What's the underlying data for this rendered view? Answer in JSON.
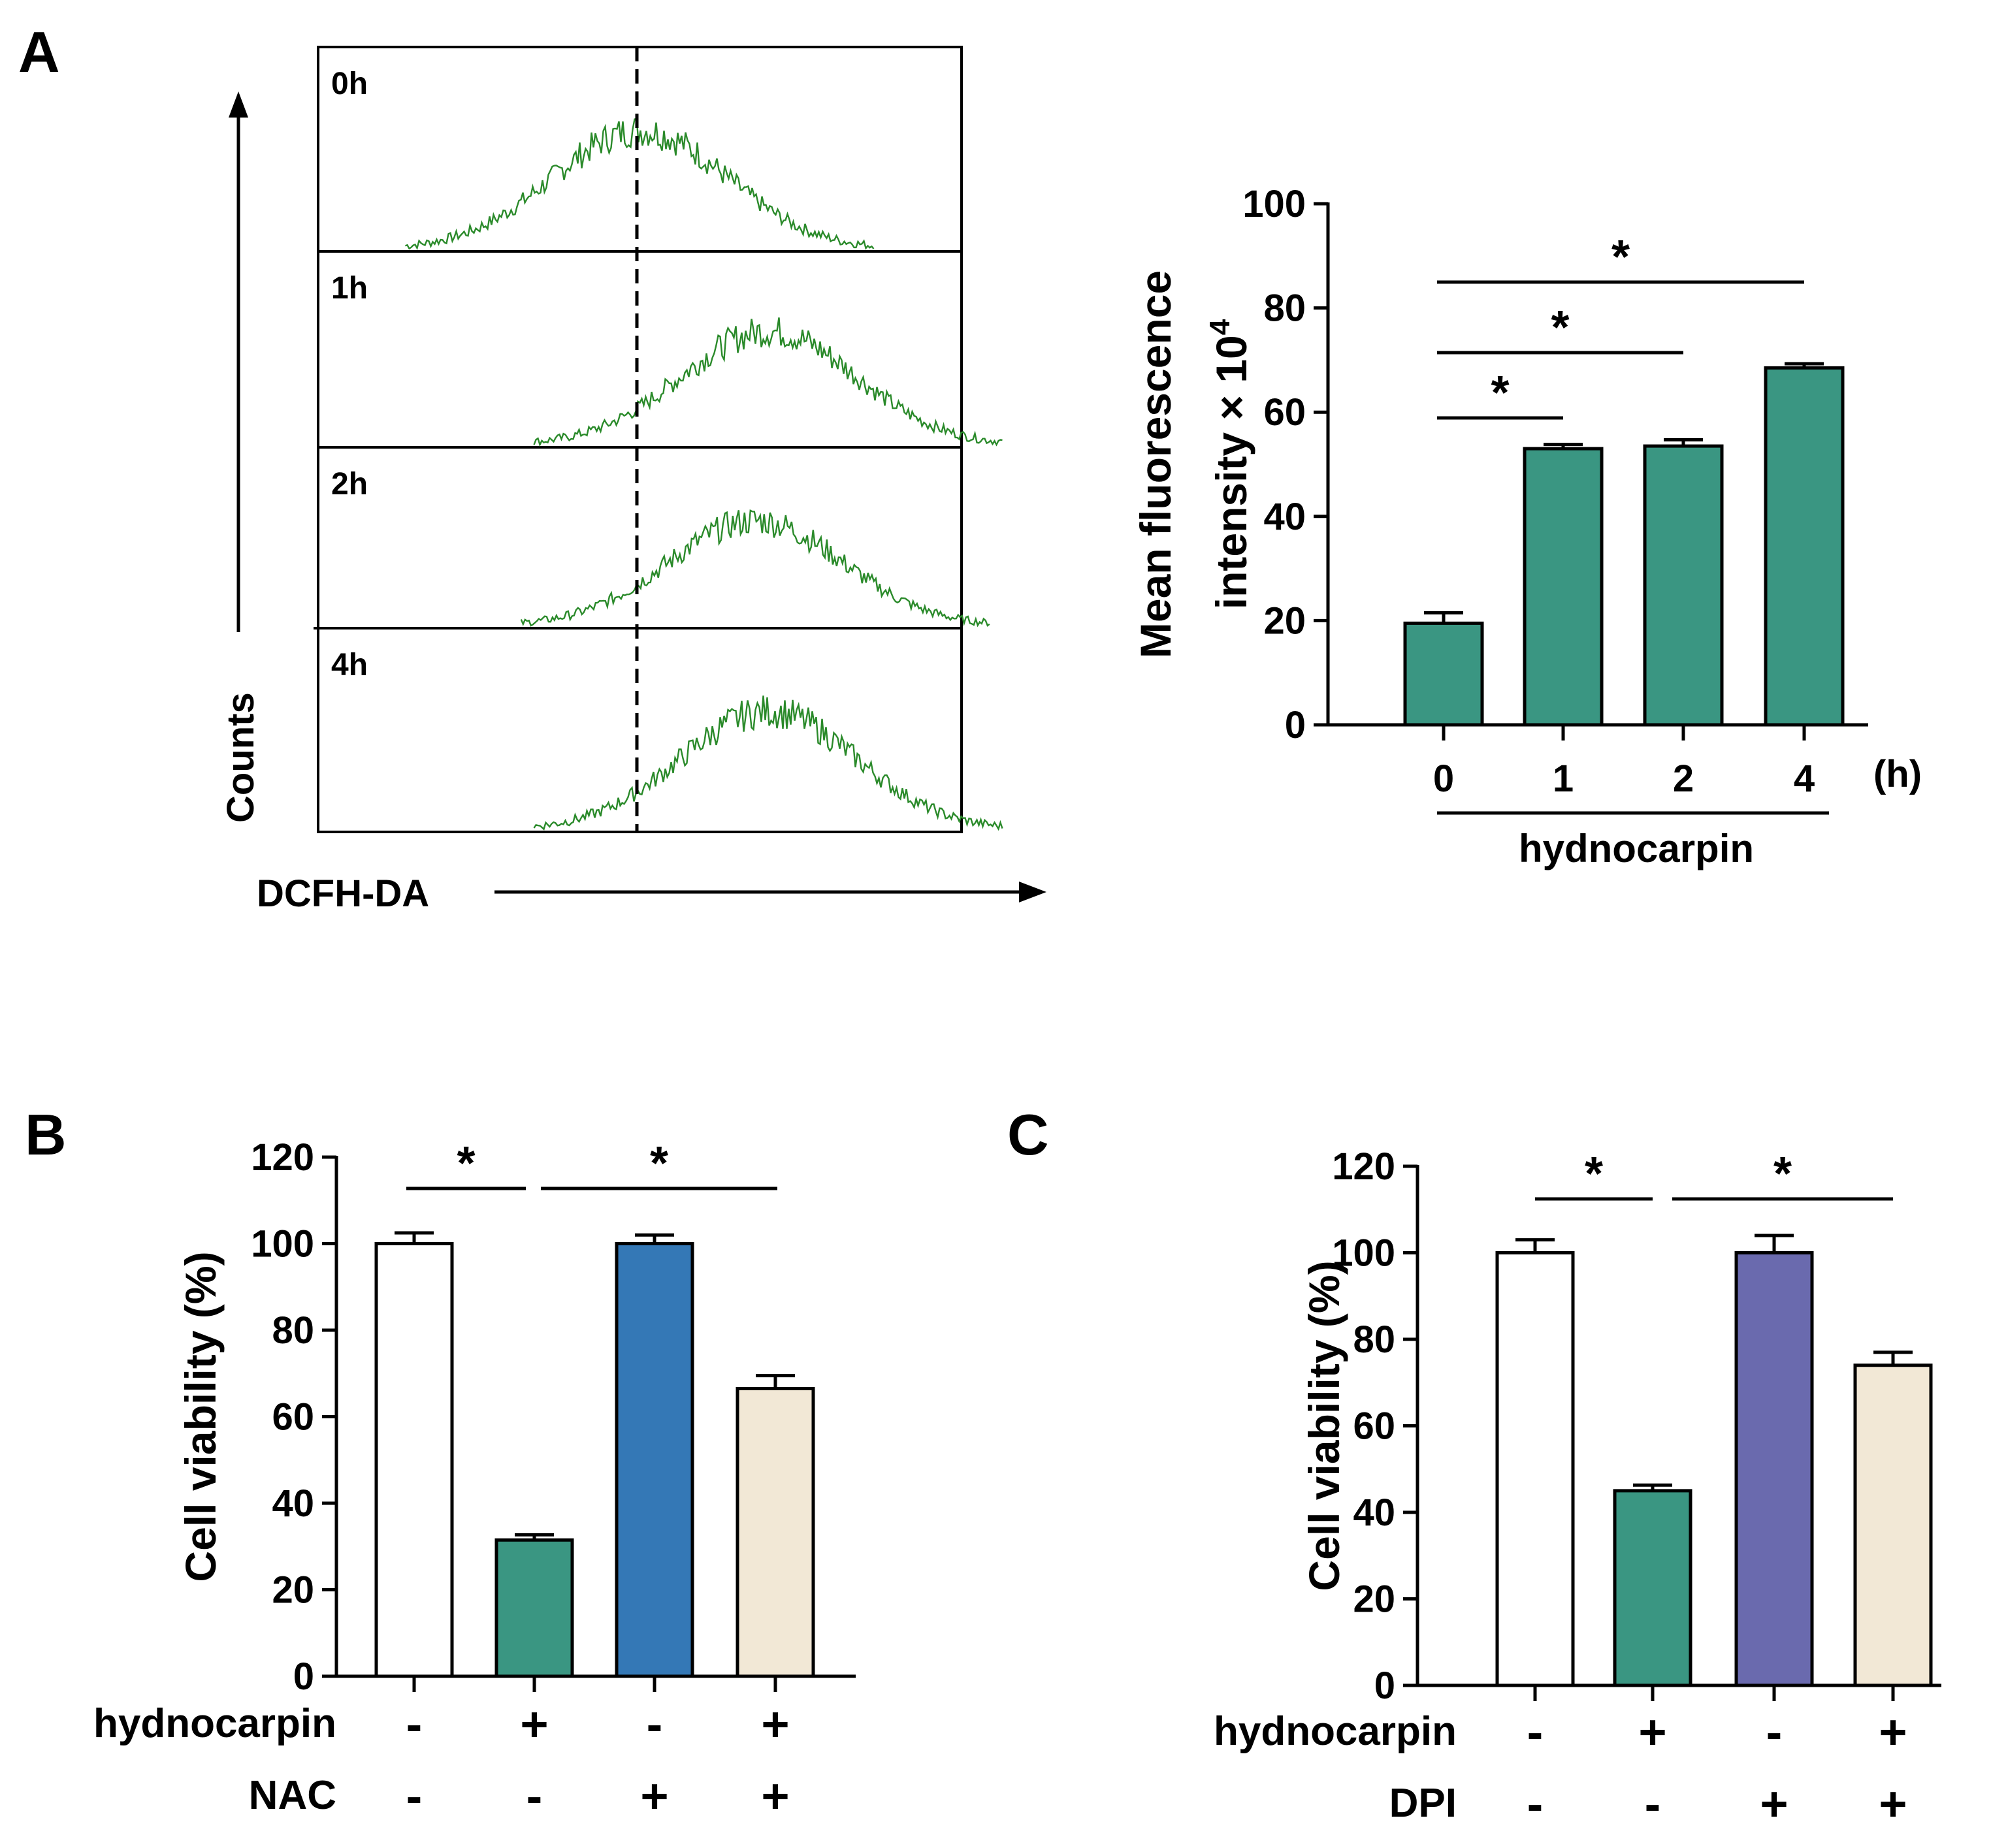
{
  "chart_data": [
    {
      "panel": "A",
      "type": "histogram",
      "xlabel": "DCFH-DA",
      "ylabel": "Counts",
      "histograms": [
        {
          "label": "0h",
          "mode": 0.5
        },
        {
          "label": "1h",
          "mode": 0.7
        },
        {
          "label": "2h",
          "mode": 0.68
        },
        {
          "label": "4h",
          "mode": 0.7
        }
      ]
    },
    {
      "panel": "A",
      "type": "bar",
      "ylabel_line1": "Mean fluorescence",
      "ylabel_line2": "intensity × 10",
      "ylabel_sup": "4",
      "categories": [
        "0",
        "1",
        "2",
        "4"
      ],
      "x_unit": "(h)",
      "group_label": "hydnocarpin",
      "values": [
        19.5,
        53,
        53.5,
        68.5
      ],
      "errors": [
        2,
        0.8,
        1.2,
        0.8
      ],
      "ylim": [
        0,
        100
      ],
      "yticks": [
        "0",
        "20",
        "40",
        "60",
        "80",
        "100"
      ],
      "colors": [
        "#3a9682",
        "#3a9682",
        "#3a9682",
        "#3a9682"
      ],
      "significance": [
        {
          "from": 0,
          "to": 1,
          "label": "*"
        },
        {
          "from": 0,
          "to": 2,
          "label": "*"
        },
        {
          "from": 0,
          "to": 3,
          "label": "*"
        }
      ]
    },
    {
      "panel": "B",
      "type": "bar",
      "ylabel": "Cell viability (%)",
      "values": [
        100,
        31.5,
        100,
        66.5
      ],
      "errors": [
        2.5,
        1.2,
        2,
        3
      ],
      "ylim": [
        0,
        120
      ],
      "yticks": [
        "0",
        "20",
        "40",
        "60",
        "80",
        "100",
        "120"
      ],
      "colors": [
        "#ffffff",
        "#3a9682",
        "#3478b6",
        "#f2e8d6"
      ],
      "conditions": [
        {
          "name": "hydnocarpin",
          "marks": [
            "-",
            "+",
            "-",
            "+"
          ]
        },
        {
          "name": "NAC",
          "marks": [
            "-",
            "-",
            "+",
            "+"
          ]
        }
      ],
      "significance": [
        {
          "from": 0,
          "to": 1,
          "label": "*"
        },
        {
          "from": 1,
          "to": 3,
          "label": "*"
        }
      ]
    },
    {
      "panel": "C",
      "type": "bar",
      "ylabel": "Cell viability (%)",
      "values": [
        100,
        45,
        100,
        74
      ],
      "errors": [
        3,
        1.3,
        4,
        3
      ],
      "ylim": [
        0,
        120
      ],
      "yticks": [
        "0",
        "20",
        "40",
        "60",
        "80",
        "100",
        "120"
      ],
      "colors": [
        "#ffffff",
        "#3a9682",
        "#6a6aae",
        "#f2e8d6"
      ],
      "conditions": [
        {
          "name": "hydnocarpin",
          "marks": [
            "-",
            "+",
            "-",
            "+"
          ]
        },
        {
          "name": "DPI",
          "marks": [
            "-",
            "-",
            "+",
            "+"
          ]
        }
      ],
      "significance": [
        {
          "from": 0,
          "to": 1,
          "label": "*"
        },
        {
          "from": 1,
          "to": 3,
          "label": "*"
        }
      ]
    }
  ],
  "panels": {
    "a": "A",
    "b": "B",
    "c": "C"
  }
}
